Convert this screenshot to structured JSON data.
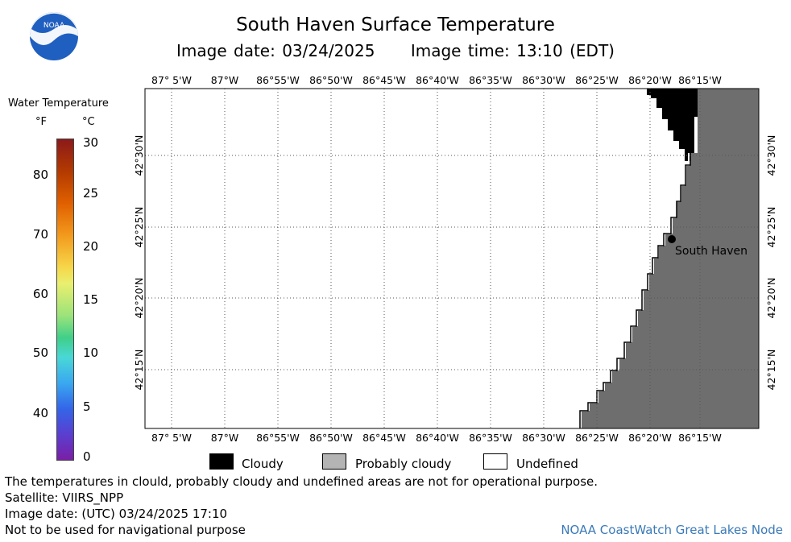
{
  "header": {
    "title": "South Haven Surface Temperature",
    "image_date": "Image date: 03/24/2025",
    "image_time": "Image time: 13:10 (EDT)",
    "logo_text": "NOAA"
  },
  "map": {
    "lon_labels": [
      "87° 5'W",
      "87°W",
      "86°55'W",
      "86°50'W",
      "86°45'W",
      "86°40'W",
      "86°35'W",
      "86°30'W",
      "86°25'W",
      "86°20'W",
      "86°15'W"
    ],
    "lat_labels": [
      "42°30'N",
      "42°25'N",
      "42°20'N",
      "42°15'N"
    ],
    "place_label": "South Haven",
    "colors": {
      "land": "#6e6e6e",
      "cloud": "#000000",
      "water": "#ffffff",
      "grid": "#555555"
    }
  },
  "legend": {
    "title": "Water Temperature",
    "unit_f": "°F",
    "unit_c": "°C",
    "ticks_f": [
      "80",
      "70",
      "60",
      "50",
      "40"
    ],
    "ticks_c": [
      "30",
      "25",
      "20",
      "15",
      "10",
      "5",
      "0"
    ],
    "categories": [
      {
        "label": "Cloudy",
        "color": "#000000"
      },
      {
        "label": "Probably cloudy",
        "color": "#b4b4b4"
      },
      {
        "label": "Undefined",
        "color": "#ffffff"
      }
    ]
  },
  "footer": {
    "notes": [
      "The temperatures in clould, probably cloudy and undefined areas are not for operational purpose.",
      "Satellite: VIIRS_NPP",
      "Image date: (UTC) 03/24/2025  17:10",
      "Not to be used for navigational purpose"
    ],
    "credit": "NOAA CoastWatch Great Lakes Node"
  }
}
